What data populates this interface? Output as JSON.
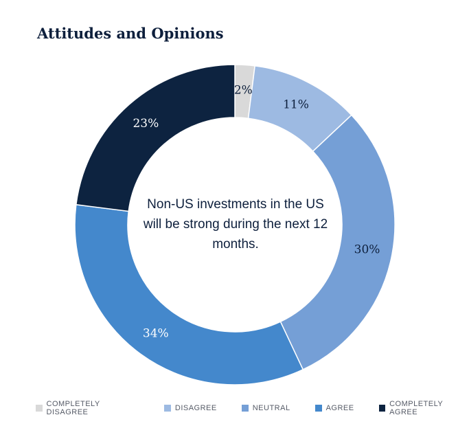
{
  "chart_data": {
    "type": "pie",
    "title": "Attitudes and Opinions",
    "center_text": "Non-US investments in the US will be strong during the next 12 months.",
    "slices": [
      {
        "label": "COMPLETELY  DISAGREE",
        "value": 2,
        "display": "2%",
        "color": "#d9d9d9",
        "label_color": "#0d1f3c"
      },
      {
        "label": "DISAGREE",
        "value": 11,
        "display": "11%",
        "color": "#9dbae2",
        "label_color": "#0d1f3c"
      },
      {
        "label": "NEUTRAL",
        "value": 30,
        "display": "30%",
        "color": "#759fd6",
        "label_color": "#0d1f3c"
      },
      {
        "label": "AGREE",
        "value": 34,
        "display": "34%",
        "color": "#4488cc",
        "label_color": "#ffffff"
      },
      {
        "label": "COMPLETELY  AGREE",
        "value": 23,
        "display": "23%",
        "color": "#0d2340",
        "label_color": "#ffffff"
      }
    ],
    "legend_position": "bottom"
  }
}
